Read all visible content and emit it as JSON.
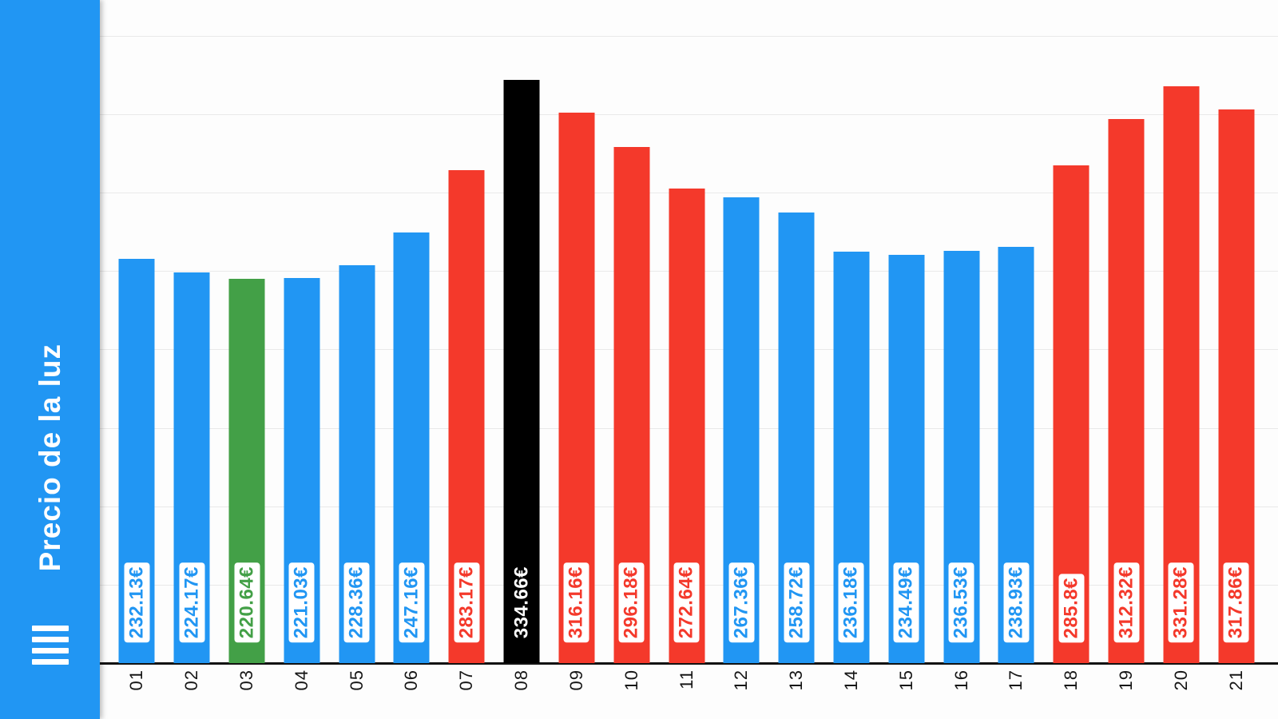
{
  "app": {
    "title": "Precio de la luz"
  },
  "sidebar": {
    "title": "Precio de la luz",
    "menu_icon": "hamburger-menu-icon"
  },
  "palette": {
    "blue": "#2196F3",
    "green": "#43A047",
    "red": "#F4392B",
    "black": "#000000",
    "chip_bg": "#FFFFFF",
    "black_bar_label": "#FFFFFF",
    "axis_color": "#121212",
    "grid_color": "#E9E9E9"
  },
  "chart_data": {
    "type": "bar",
    "title": "Precio de la luz",
    "xlabel": "",
    "ylabel": "",
    "ylim": [
      0,
      360
    ],
    "grid": true,
    "legend": false,
    "categories": [
      "01",
      "02",
      "03",
      "04",
      "05",
      "06",
      "07",
      "08",
      "09",
      "10",
      "11",
      "12",
      "13",
      "14",
      "15",
      "16",
      "17",
      "18",
      "19",
      "20",
      "21"
    ],
    "values": [
      232.13,
      224.17,
      220.64,
      221.03,
      228.36,
      247.16,
      283.17,
      334.66,
      316.16,
      296.18,
      272.64,
      267.36,
      258.72,
      236.18,
      234.49,
      236.53,
      238.93,
      285.8,
      312.32,
      331.28,
      317.86
    ],
    "value_labels": [
      "232.13€",
      "224.17€",
      "220.64€",
      "221.03€",
      "228.36€",
      "247.16€",
      "283.17€",
      "334.66€",
      "316.16€",
      "296.18€",
      "272.64€",
      "267.36€",
      "258.72€",
      "236.18€",
      "234.49€",
      "236.53€",
      "238.93€",
      "285.8€",
      "312.32€",
      "331.28€",
      "317.86€"
    ],
    "bar_colors": [
      "blue",
      "blue",
      "green",
      "blue",
      "blue",
      "blue",
      "red",
      "black",
      "red",
      "red",
      "red",
      "blue",
      "blue",
      "blue",
      "blue",
      "blue",
      "blue",
      "red",
      "red",
      "red",
      "red"
    ]
  }
}
